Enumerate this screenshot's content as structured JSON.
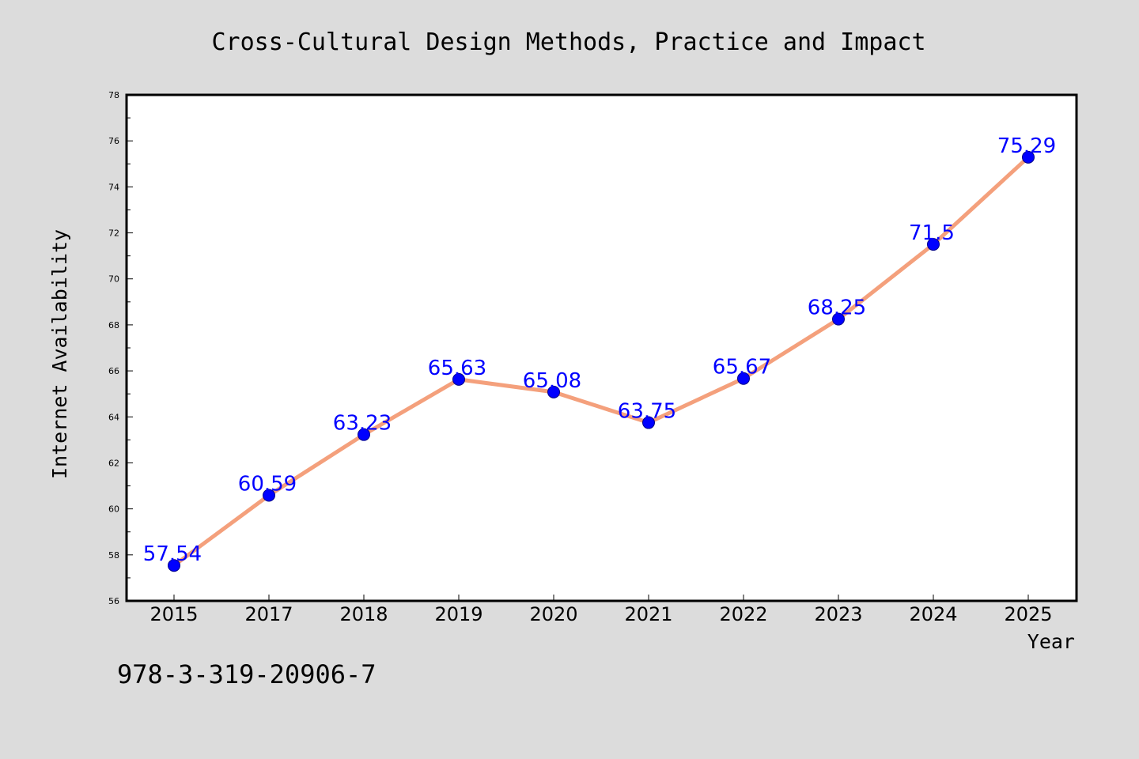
{
  "figure": {
    "isbn_text": "978-3-319-20906-7"
  },
  "colors": {
    "background": "#dcdcdc",
    "plot_background": "#ffffff",
    "line": "#f4a07c",
    "marker": "#0000ff",
    "data_label": "#0000ff"
  },
  "chart_data": {
    "type": "line",
    "title": "Cross-Cultural Design Methods, Practice and Impact",
    "xlabel": "Year",
    "ylabel": "Internet Availability",
    "categories": [
      "2015",
      "2017",
      "2018",
      "2019",
      "2020",
      "2021",
      "2022",
      "2023",
      "2024",
      "2025"
    ],
    "series": [
      {
        "values": [
          57.54,
          60.59,
          63.23,
          65.63,
          65.08,
          63.75,
          65.67,
          68.25,
          71.5,
          75.29
        ],
        "labels": [
          "57.54",
          "60.59",
          "63.23",
          "65.63",
          "65.08",
          "63.75",
          "65.67",
          "68.25",
          "71.5",
          "75.29"
        ]
      }
    ],
    "ylim": [
      56,
      78
    ],
    "yticks": [
      56,
      58,
      60,
      62,
      64,
      66,
      68,
      70,
      72,
      74,
      76,
      78
    ],
    "grid": false,
    "legend": "none",
    "marker": "circle"
  }
}
